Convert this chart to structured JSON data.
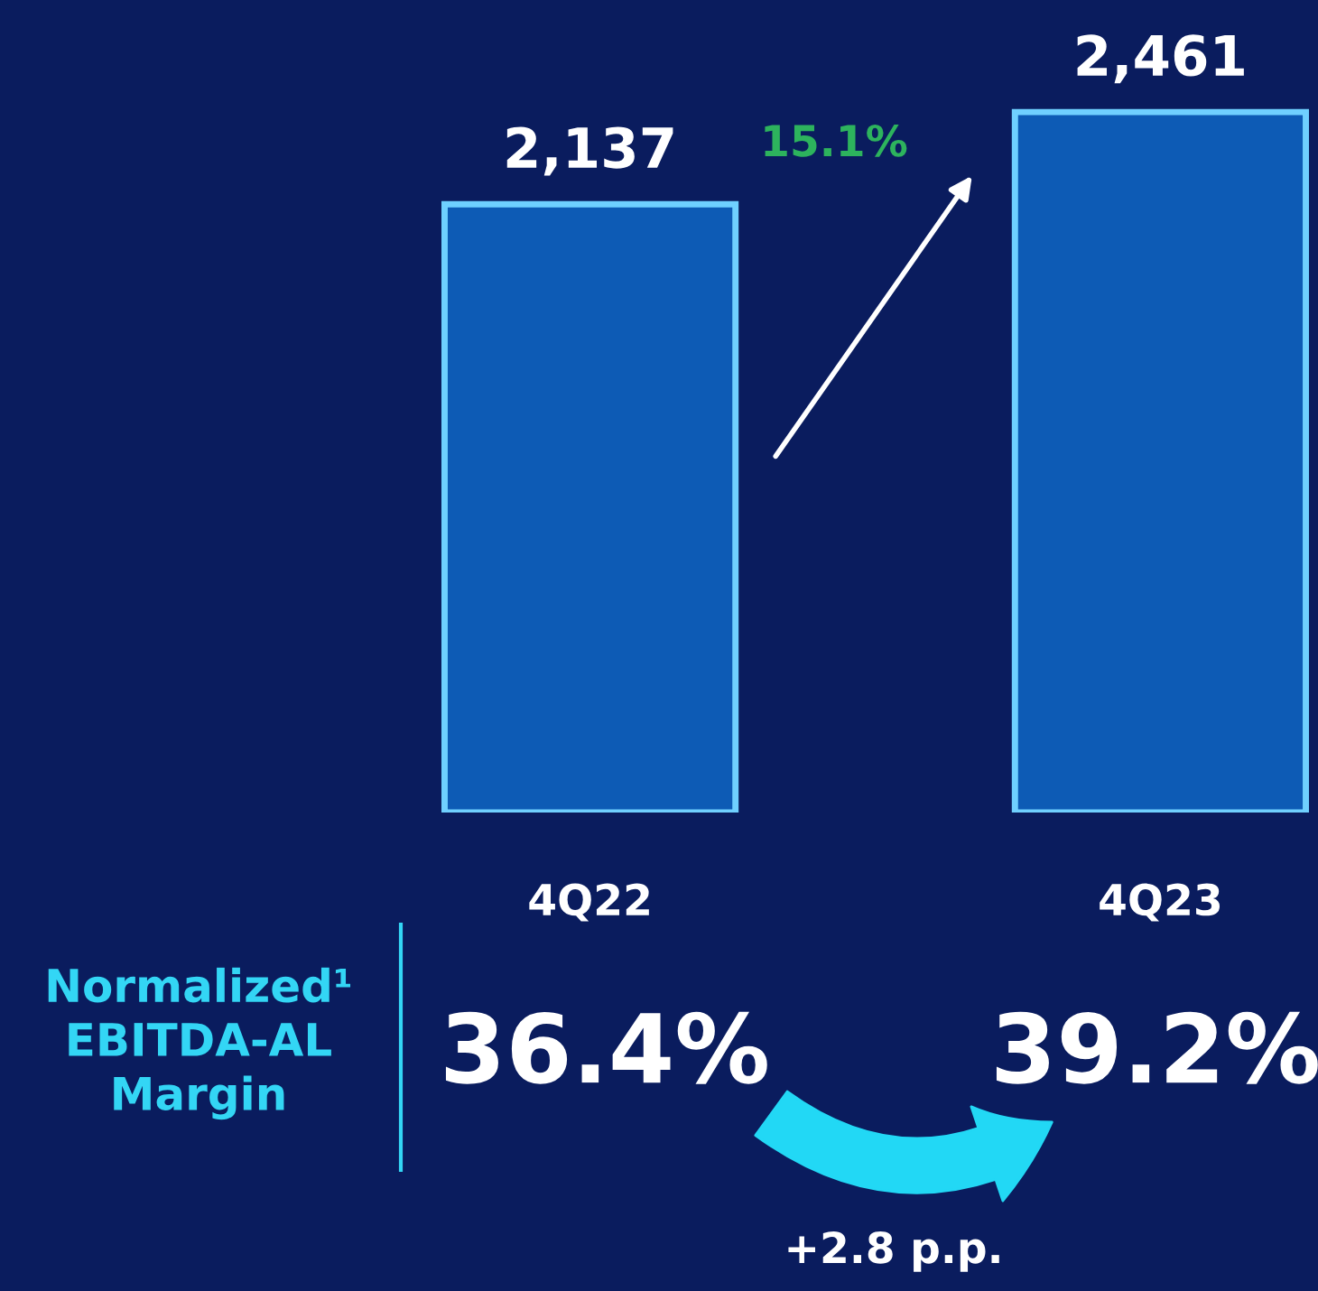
{
  "chart_data": {
    "type": "bar",
    "categories": [
      "4Q22",
      "4Q23"
    ],
    "values": [
      2137,
      2461
    ],
    "value_labels": [
      "2,137",
      "2,461"
    ],
    "color": "#0d5bb5",
    "annotations": [
      "15.1%",
      "Normalized¹\nEBITDA-AL\nMargin",
      "36.4%",
      "39.2%",
      "+2.8 p.p."
    ]
  }
}
